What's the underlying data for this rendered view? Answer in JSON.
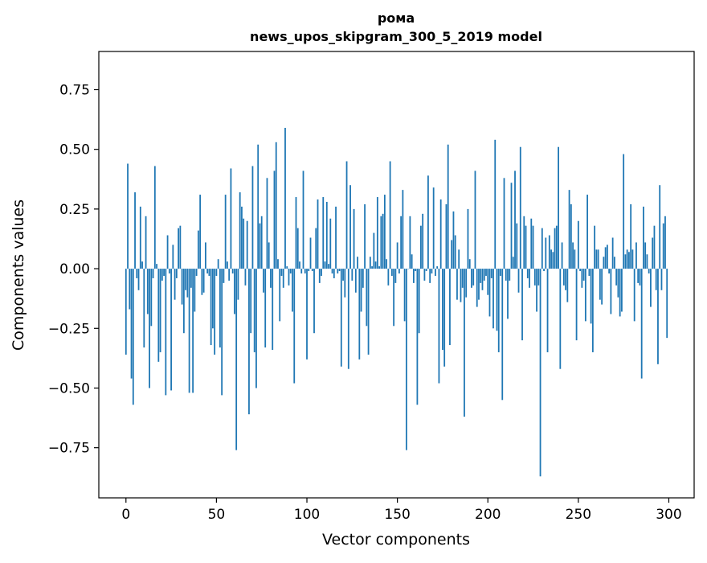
{
  "chart_data": {
    "type": "bar",
    "title": "рома",
    "subtitle": "news_upos_skipgram_300_5_2019 model",
    "xlabel": "Vector components",
    "ylabel": "Components values",
    "xlim": [
      -15,
      314
    ],
    "ylim": [
      -0.96,
      0.91
    ],
    "xticks": [
      0,
      50,
      100,
      150,
      200,
      250,
      300
    ],
    "yticks": [
      -0.75,
      -0.5,
      -0.25,
      0.0,
      0.25,
      0.5,
      0.75
    ],
    "ytick_labels": [
      "−0.75",
      "−0.50",
      "−0.25",
      "0.00",
      "0.25",
      "0.50",
      "0.75"
    ],
    "bar_color": "#1f77b4",
    "grid": false,
    "values": [
      -0.36,
      0.44,
      -0.17,
      -0.46,
      -0.57,
      0.32,
      -0.04,
      -0.09,
      0.26,
      0.03,
      -0.33,
      0.22,
      -0.19,
      -0.5,
      -0.24,
      -0.04,
      0.43,
      0.02,
      -0.39,
      -0.35,
      -0.05,
      -0.03,
      -0.53,
      0.14,
      -0.02,
      -0.51,
      0.1,
      -0.13,
      -0.04,
      0.17,
      0.18,
      -0.15,
      -0.27,
      -0.09,
      -0.12,
      -0.52,
      -0.08,
      -0.52,
      -0.18,
      -0.03,
      0.16,
      0.31,
      -0.11,
      -0.1,
      0.11,
      -0.02,
      -0.03,
      -0.32,
      -0.25,
      -0.36,
      -0.03,
      0.04,
      -0.33,
      -0.53,
      -0.06,
      0.31,
      0.03,
      -0.05,
      0.42,
      -0.02,
      -0.19,
      -0.76,
      -0.13,
      0.32,
      0.26,
      0.21,
      -0.07,
      0.2,
      -0.61,
      -0.27,
      0.43,
      -0.35,
      -0.5,
      0.52,
      0.19,
      0.22,
      -0.1,
      -0.33,
      0.38,
      0.11,
      -0.08,
      -0.34,
      0.41,
      0.53,
      0.04,
      -0.22,
      -0.03,
      -0.08,
      0.59,
      0.01,
      -0.07,
      -0.02,
      -0.18,
      -0.48,
      0.3,
      0.17,
      0.03,
      -0.02,
      0.41,
      -0.02,
      -0.38,
      -0.01,
      0.13,
      -0.01,
      -0.27,
      0.17,
      0.29,
      -0.06,
      -0.03,
      0.3,
      0.03,
      0.28,
      0.02,
      0.21,
      -0.02,
      -0.04,
      0.26,
      -0.02,
      -0.01,
      -0.41,
      -0.05,
      -0.12,
      0.45,
      -0.42,
      0.35,
      -0.05,
      0.25,
      -0.1,
      0.05,
      -0.38,
      -0.18,
      -0.08,
      0.27,
      -0.24,
      -0.36,
      0.05,
      0.01,
      0.15,
      0.03,
      0.3,
      0.01,
      0.22,
      0.23,
      0.31,
      0.04,
      -0.07,
      0.45,
      -0.03,
      -0.24,
      -0.06,
      0.11,
      -0.02,
      0.22,
      0.33,
      -0.22,
      -0.76,
      0.0,
      0.22,
      0.06,
      -0.06,
      -0.01,
      -0.57,
      -0.27,
      0.18,
      0.23,
      -0.05,
      -0.01,
      0.39,
      -0.06,
      -0.02,
      0.34,
      -0.03,
      0.01,
      -0.48,
      0.29,
      -0.34,
      -0.41,
      0.27,
      0.52,
      -0.32,
      0.12,
      0.24,
      0.14,
      -0.13,
      0.08,
      -0.14,
      -0.08,
      -0.62,
      -0.12,
      0.25,
      0.04,
      -0.08,
      -0.07,
      0.41,
      -0.16,
      -0.13,
      -0.06,
      -0.09,
      -0.05,
      -0.03,
      -0.11,
      -0.2,
      -0.04,
      -0.25,
      0.54,
      -0.26,
      -0.35,
      -0.03,
      -0.55,
      0.38,
      -0.05,
      -0.21,
      -0.05,
      0.36,
      0.05,
      0.41,
      0.19,
      -0.1,
      0.51,
      -0.3,
      0.22,
      0.18,
      -0.04,
      -0.08,
      0.21,
      0.18,
      -0.07,
      -0.18,
      -0.07,
      -0.87,
      0.17,
      -0.01,
      0.13,
      -0.35,
      0.14,
      0.08,
      0.07,
      0.17,
      0.18,
      0.51,
      -0.42,
      0.11,
      -0.07,
      -0.09,
      -0.14,
      0.33,
      0.27,
      0.11,
      0.08,
      -0.3,
      0.2,
      -0.01,
      -0.08,
      -0.05,
      -0.22,
      0.31,
      -0.03,
      -0.23,
      -0.35,
      0.18,
      0.08,
      0.08,
      -0.13,
      -0.15,
      0.05,
      0.09,
      0.1,
      -0.02,
      -0.19,
      0.13,
      0.05,
      -0.07,
      -0.12,
      -0.2,
      -0.18,
      0.48,
      0.06,
      0.08,
      0.07,
      0.27,
      0.08,
      -0.22,
      0.11,
      -0.06,
      -0.07,
      -0.46,
      0.26,
      0.11,
      0.06,
      -0.02,
      -0.16,
      0.13,
      0.18,
      -0.09,
      -0.4,
      0.35,
      -0.09,
      0.19,
      0.22,
      -0.29
    ]
  }
}
